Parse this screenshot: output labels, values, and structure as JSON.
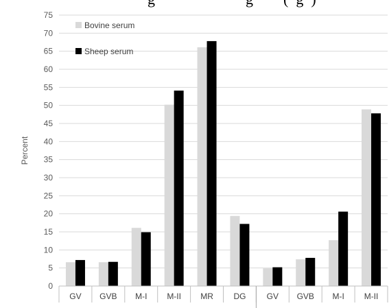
{
  "chart_data": {
    "type": "bar",
    "title_partial": "g                        g        (  g  )",
    "ylabel": "Percent",
    "xlabel": "",
    "ylim": [
      0,
      75
    ],
    "ytick_step": 5,
    "categories": [
      "GV",
      "GVB",
      "M-I",
      "M-II",
      "MR",
      "DG",
      "GV",
      "GVB",
      "M-I",
      "M-II"
    ],
    "group_divider_after_index": 5,
    "legend_position": "top-left",
    "grid": true,
    "series": [
      {
        "name": "Bovine serum",
        "color": "#d9d9d9",
        "values": [
          6.6,
          6.6,
          16.1,
          50.2,
          66.1,
          19.4,
          4.9,
          7.4,
          12.7,
          48.9
        ]
      },
      {
        "name": "Sheep serum",
        "color": "#000000",
        "values": [
          7.2,
          6.7,
          14.9,
          54.1,
          67.8,
          17.2,
          5.2,
          7.8,
          20.6,
          47.8
        ]
      }
    ]
  }
}
